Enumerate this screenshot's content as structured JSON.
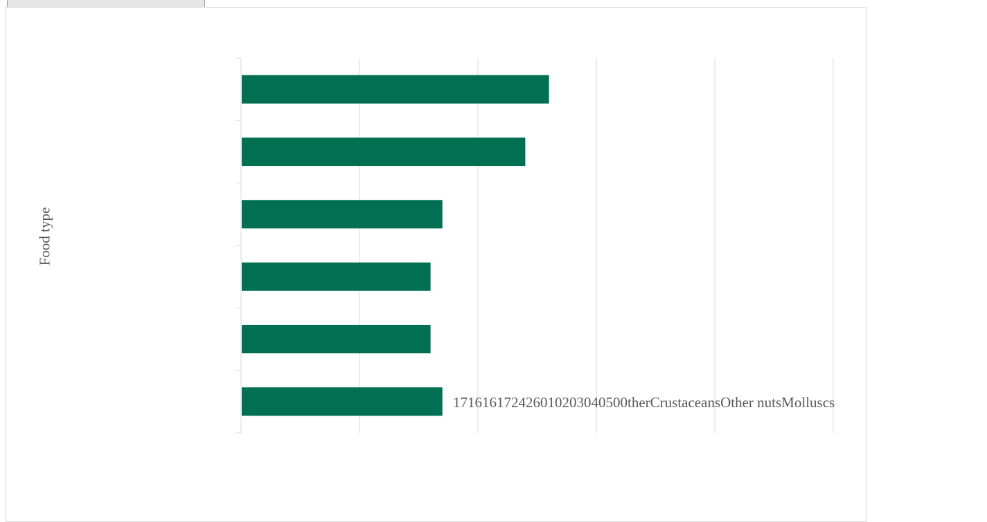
{
  "chart_data": {
    "type": "bar",
    "orientation": "horizontal",
    "categories": [
      "Other",
      "Crustaceans",
      "Other nuts",
      "Molluscs",
      "",
      ""
    ],
    "values": [
      17,
      16,
      16,
      17,
      24,
      26
    ],
    "xlim": [
      0,
      50
    ],
    "xticks": [
      0,
      10,
      20,
      30,
      40,
      50
    ],
    "ylabel": "Food type",
    "grid": true,
    "bar_color": "#006f52",
    "overflow_label_text": "171616172426010203040500therCrustaceansOther nutsMolluscs"
  },
  "colors": {
    "grid": "#d9d9d9",
    "text": "#595959",
    "frame_border": "#d9d9d9"
  }
}
